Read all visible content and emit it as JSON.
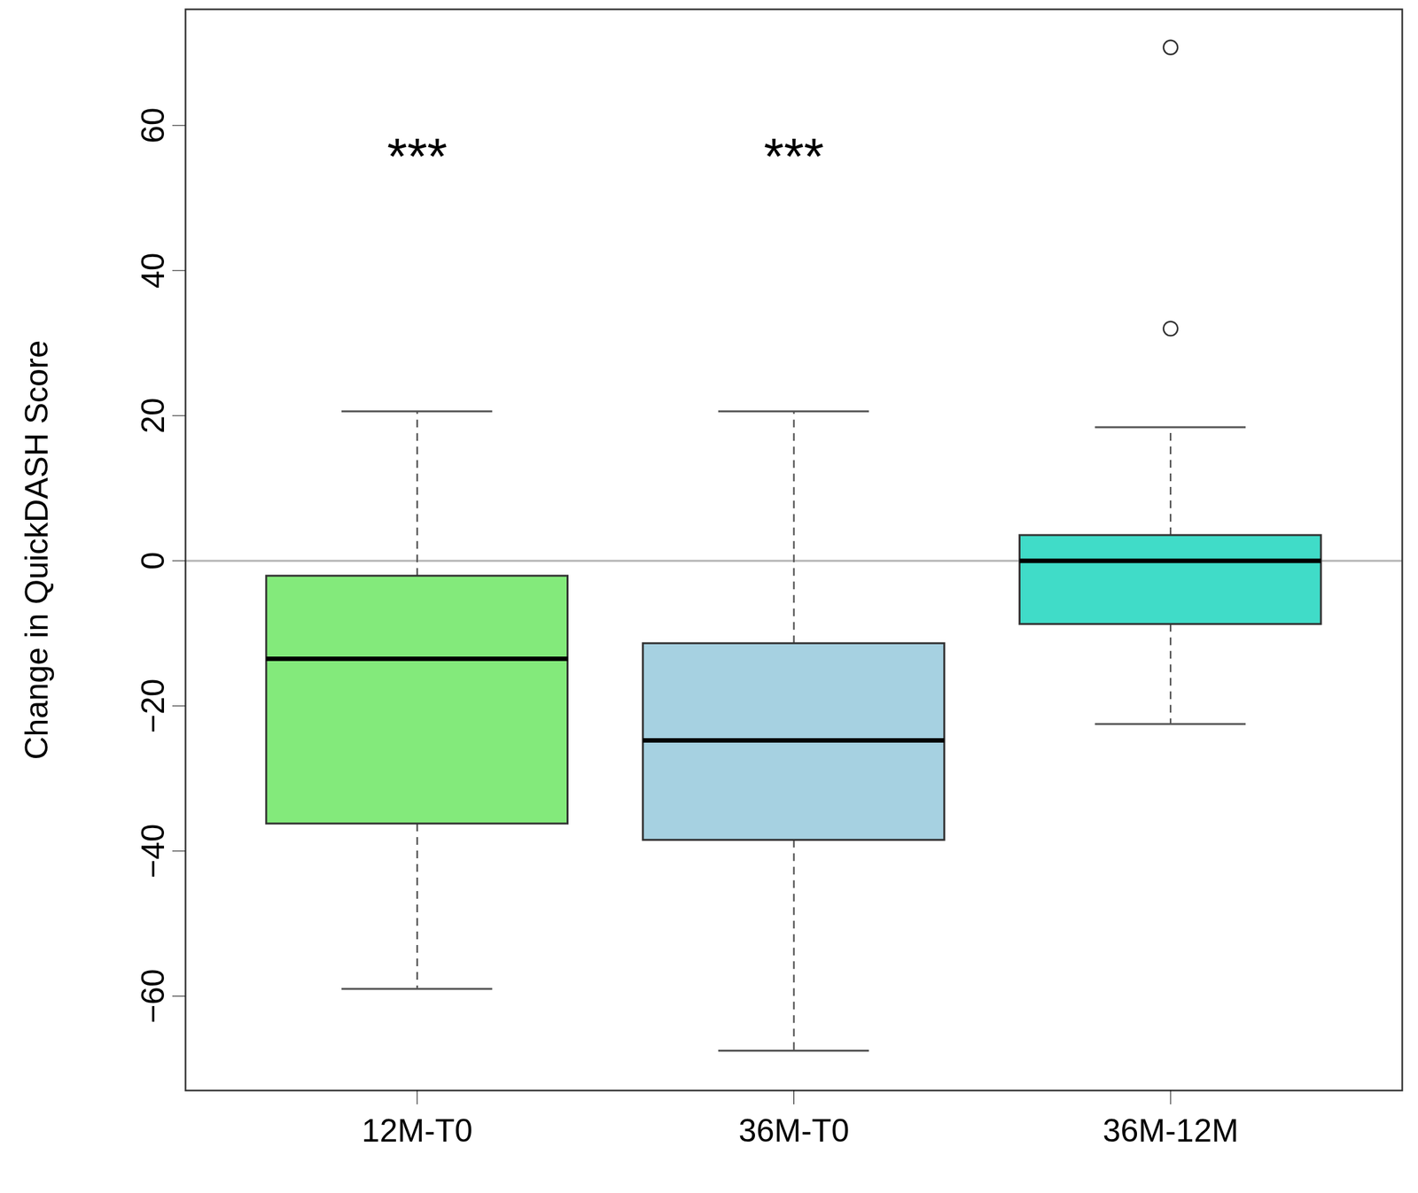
{
  "chart_data": {
    "type": "box",
    "y_label": "Change in QuickDASH Score",
    "categories": [
      "12M-T0",
      "36M-T0",
      "36M-12M"
    ],
    "colors": [
      "#83ea7b",
      "#a6d1e1",
      "#40dcc8"
    ],
    "whisker_low": [
      -59,
      -67.5,
      -22.5
    ],
    "q1": [
      -36.25,
      -38.5,
      -8.75
    ],
    "median": [
      -13.5,
      -24.75,
      0
    ],
    "q3": [
      -2.1,
      -11.4,
      3.5
    ],
    "whisker_high": [
      20.6,
      20.6,
      18.4
    ],
    "outliers": [
      [],
      [],
      [
        70.75,
        32
      ]
    ],
    "annotations": [
      {
        "text": "***",
        "category": "12M-T0"
      },
      {
        "text": "***",
        "category": "36M-T0"
      }
    ],
    "reference_line": 0,
    "ylim": [
      -73,
      76
    ],
    "yticks": [
      -60,
      -40,
      -20,
      0,
      20,
      40,
      60
    ],
    "grid": false
  }
}
